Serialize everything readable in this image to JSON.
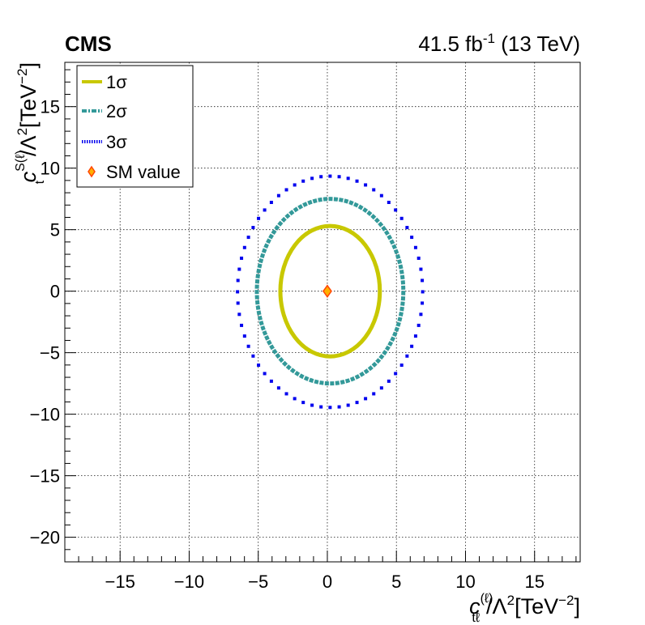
{
  "chart_data": {
    "type": "scatter",
    "header": {
      "experiment": "CMS",
      "lumi": "41.5 fb",
      "lumi_exp": "-1",
      "energy": " (13 TeV)"
    },
    "xlabel": {
      "sym": "c",
      "sub": "tℓ",
      "sup": "(ℓ)",
      "rest": "/Λ",
      "sq": "2",
      "unit": "[TeV",
      "unit_exp": "−2",
      "close": "]"
    },
    "ylabel": {
      "sym": "c",
      "sub": "t",
      "sup": "S(ℓ)",
      "rest": "/Λ",
      "sq": "2",
      "unit": "[TeV",
      "unit_exp": "−2",
      "close": "]"
    },
    "xlim": [
      -19,
      18.3
    ],
    "ylim": [
      -22,
      18.6
    ],
    "x_ticks": [
      {
        "value": -15,
        "label": "−15"
      },
      {
        "value": -10,
        "label": "−10"
      },
      {
        "value": -5,
        "label": "−5"
      },
      {
        "value": 0,
        "label": "0"
      },
      {
        "value": 5,
        "label": "5"
      },
      {
        "value": 10,
        "label": "10"
      },
      {
        "value": 15,
        "label": "15"
      }
    ],
    "y_ticks": [
      {
        "value": -20,
        "label": "−20"
      },
      {
        "value": -15,
        "label": "−15"
      },
      {
        "value": -10,
        "label": "−10"
      },
      {
        "value": -5,
        "label": "−5"
      },
      {
        "value": 0,
        "label": "0"
      },
      {
        "value": 5,
        "label": "5"
      },
      {
        "value": 10,
        "label": "10"
      },
      {
        "value": 15,
        "label": "15"
      }
    ],
    "grid": true,
    "legend_position": "top-left",
    "series": [
      {
        "name": "1σ",
        "color": "#c8c800",
        "style": "solid",
        "center": [
          0.2,
          0.0
        ],
        "rx": 3.6,
        "ry": 5.3,
        "n_points": 0
      },
      {
        "name": "2σ",
        "color": "#339999",
        "style": "dashed",
        "center": [
          0.2,
          0.0
        ],
        "rx": 5.3,
        "ry": 7.5,
        "n_points": 0
      },
      {
        "name": "3σ",
        "color": "#0000ee",
        "style": "dotted",
        "center": [
          0.2,
          -0.05
        ],
        "rx": 6.7,
        "ry": 9.4,
        "n_points": 64
      }
    ],
    "sm_value": {
      "name": "SM value",
      "x": 0,
      "y": 0,
      "color": "#ff4400",
      "fill": "#ffb000"
    }
  }
}
